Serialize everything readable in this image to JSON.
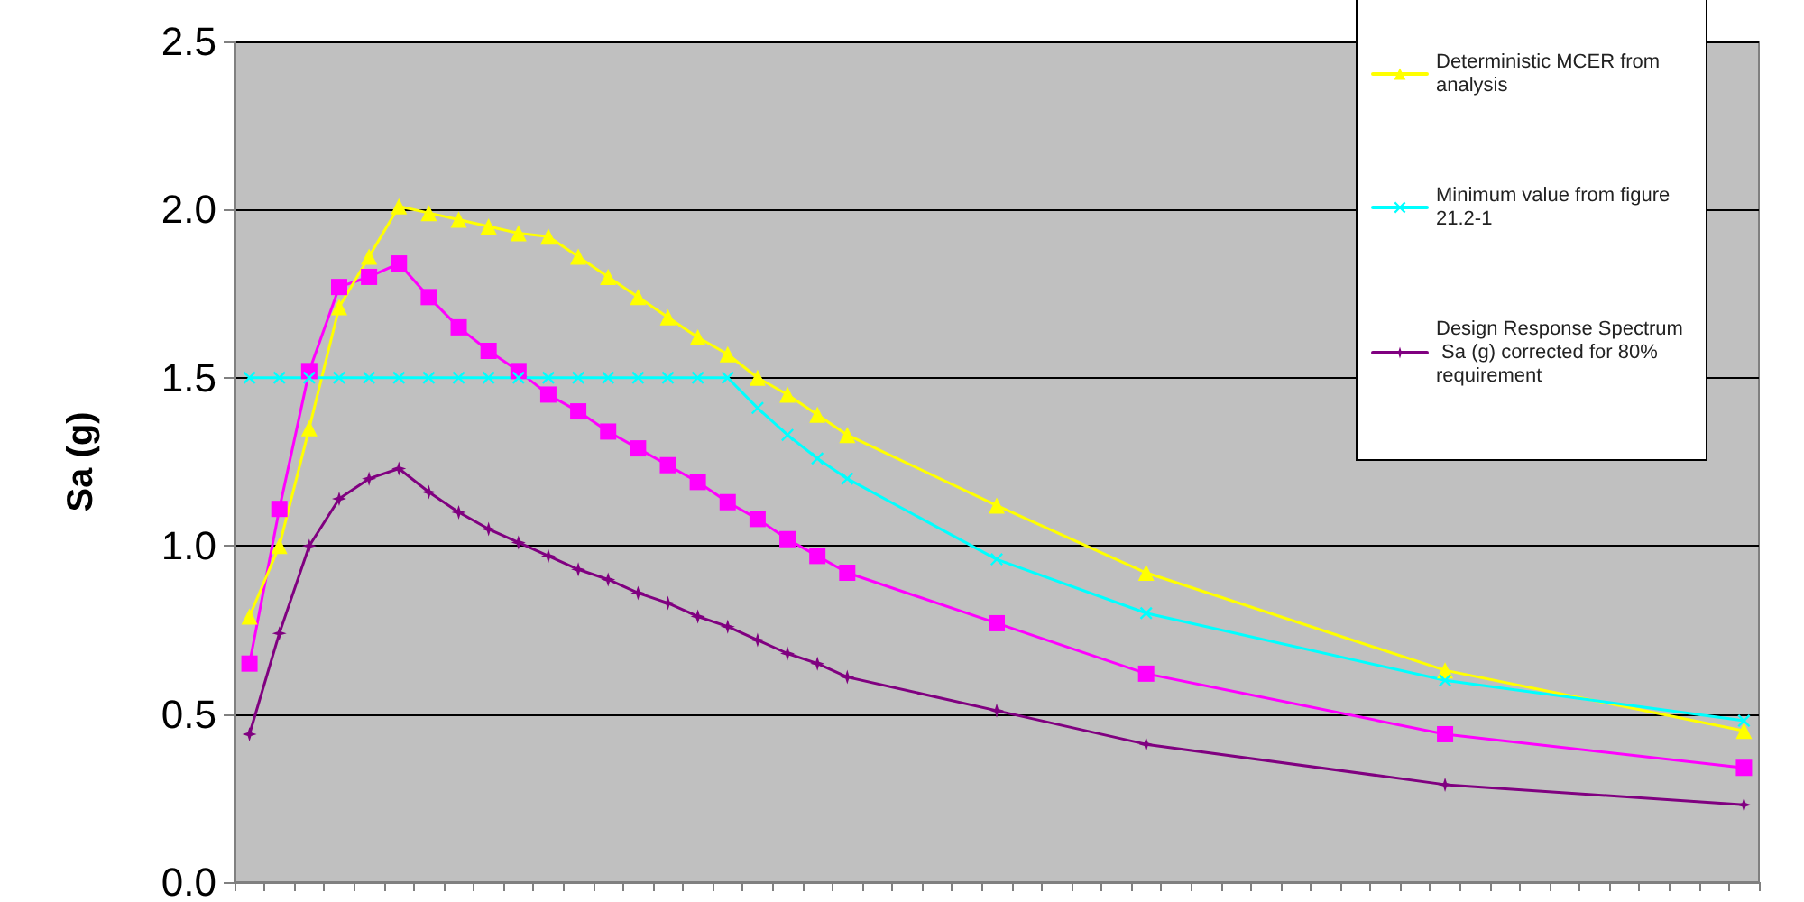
{
  "chart_data": {
    "type": "line",
    "ylabel": "Sa (g)",
    "ylim": [
      0,
      2.5
    ],
    "yticks": [
      {
        "value": 0,
        "label": "0.0"
      },
      {
        "value": 0.5,
        "label": "0.5"
      },
      {
        "value": 1,
        "label": "1.0"
      },
      {
        "value": 1.5,
        "label": "1.5"
      },
      {
        "value": 2,
        "label": "2.0"
      },
      {
        "value": 2.5,
        "label": "2.5"
      }
    ],
    "categories": [
      null,
      null,
      null,
      null,
      null,
      null,
      null,
      null,
      null,
      null,
      null,
      null,
      null,
      null,
      null,
      null,
      null,
      null,
      null,
      null,
      null,
      null,
      null,
      null,
      null,
      null,
      null,
      null,
      null,
      null,
      null,
      null,
      null,
      null,
      null,
      null,
      null,
      null,
      null,
      null,
      null,
      null,
      null,
      null,
      null,
      null,
      null,
      null,
      null,
      null,
      null
    ],
    "tick_labels": "y",
    "grid": "y",
    "legend": "top right",
    "line_style": "solid",
    "series": [
      {
        "color": "#ff00ff",
        "marker": "square",
        "values": [
          0.65,
          1.11,
          1.52,
          1.77,
          1.8,
          1.84,
          1.74,
          1.65,
          1.58,
          1.52,
          1.45,
          1.4,
          1.34,
          1.29,
          1.24,
          1.19,
          1.13,
          1.08,
          1.02,
          0.97,
          0.92,
          null,
          null,
          null,
          null,
          0.77,
          null,
          null,
          null,
          null,
          0.62,
          null,
          null,
          null,
          null,
          null,
          null,
          null,
          null,
          null,
          0.44,
          null,
          null,
          null,
          null,
          null,
          null,
          null,
          null,
          null,
          0.34
        ]
      },
      {
        "name": "Deterministic MCER from analysis",
        "color": "#ffff00",
        "marker": "triangle",
        "values": [
          0.79,
          1.0,
          1.35,
          1.71,
          1.86,
          2.01,
          1.99,
          1.97,
          1.95,
          1.93,
          1.92,
          1.86,
          1.8,
          1.74,
          1.68,
          1.62,
          1.57,
          1.5,
          1.45,
          1.39,
          1.33,
          null,
          null,
          null,
          null,
          1.12,
          null,
          null,
          null,
          null,
          0.92,
          null,
          null,
          null,
          null,
          null,
          null,
          null,
          null,
          null,
          0.63,
          null,
          null,
          null,
          null,
          null,
          null,
          null,
          null,
          null,
          0.45
        ]
      },
      {
        "name": "Minimum value from figure 21.2-1",
        "color": "#00ffff",
        "marker": "cross",
        "values": [
          1.5,
          1.5,
          1.5,
          1.5,
          1.5,
          1.5,
          1.5,
          1.5,
          1.5,
          1.5,
          1.5,
          1.5,
          1.5,
          1.5,
          1.5,
          1.5,
          1.5,
          1.41,
          1.33,
          1.26,
          1.2,
          null,
          null,
          null,
          null,
          0.96,
          null,
          null,
          null,
          null,
          0.8,
          null,
          null,
          null,
          null,
          null,
          null,
          null,
          null,
          null,
          0.6,
          null,
          null,
          null,
          null,
          null,
          null,
          null,
          null,
          null,
          0.48
        ]
      },
      {
        "name": "Design Response Spectrum Sa (g) corrected for 80% requirement",
        "color": "#800080",
        "marker": "star",
        "values": [
          0.44,
          0.74,
          1.0,
          1.14,
          1.2,
          1.23,
          1.16,
          1.1,
          1.05,
          1.01,
          0.97,
          0.93,
          0.9,
          0.86,
          0.83,
          0.79,
          0.76,
          0.72,
          0.68,
          0.65,
          0.61,
          null,
          null,
          null,
          null,
          0.51,
          null,
          null,
          null,
          null,
          0.41,
          null,
          null,
          null,
          null,
          null,
          null,
          null,
          null,
          null,
          0.29,
          null,
          null,
          null,
          null,
          null,
          null,
          null,
          null,
          null,
          0.23
        ]
      }
    ]
  }
}
